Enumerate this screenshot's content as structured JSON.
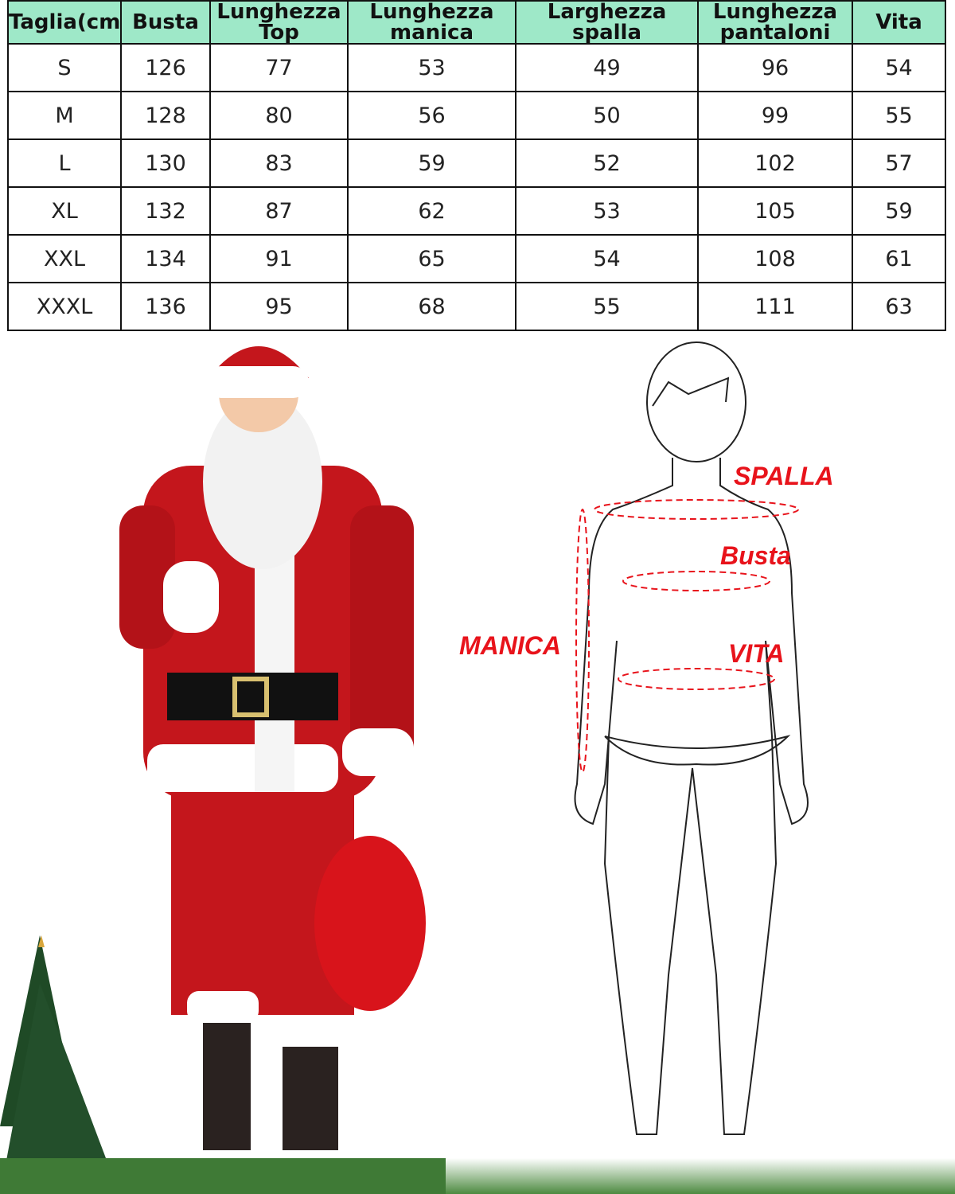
{
  "table": {
    "headers": [
      "Taglia(cm)",
      "Busta",
      "Lunghezza Top",
      "Lunghezza manica",
      "Larghezza spalla",
      "Lunghezza pantaloni",
      "Vita"
    ],
    "rows": [
      [
        "S",
        "126",
        "77",
        "53",
        "49",
        "96",
        "54"
      ],
      [
        "M",
        "128",
        "80",
        "56",
        "50",
        "99",
        "55"
      ],
      [
        "L",
        "130",
        "83",
        "59",
        "52",
        "102",
        "57"
      ],
      [
        "XL",
        "132",
        "87",
        "62",
        "53",
        "105",
        "59"
      ],
      [
        "XXL",
        "134",
        "91",
        "65",
        "54",
        "108",
        "61"
      ],
      [
        "XXXL",
        "136",
        "95",
        "68",
        "55",
        "111",
        "63"
      ]
    ]
  },
  "diagram": {
    "labels": {
      "spalla": "SPALLA",
      "busta": "Busta",
      "manica": "MANICA",
      "vita": "VITA"
    }
  },
  "colors": {
    "header_bg": "#9ee8c8",
    "label_red": "#e8131b",
    "suit_red": "#c4161c"
  }
}
